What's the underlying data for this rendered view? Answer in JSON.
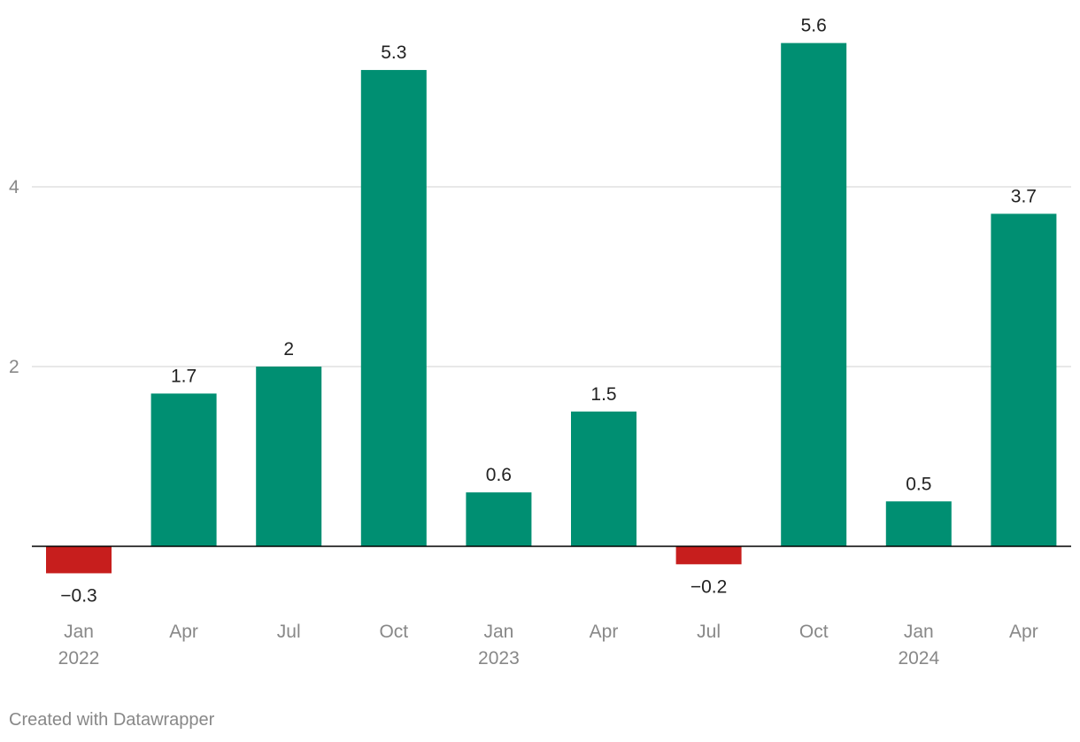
{
  "chart_data": {
    "type": "bar",
    "categories": [
      "Jan 2022",
      "Apr",
      "Jul",
      "Oct",
      "Jan 2023",
      "Apr",
      "Jul",
      "Oct",
      "Jan 2024",
      "Apr"
    ],
    "tick_labels": [
      [
        "Jan",
        "2022"
      ],
      [
        "Apr"
      ],
      [
        "Jul"
      ],
      [
        "Oct"
      ],
      [
        "Jan",
        "2023"
      ],
      [
        "Apr"
      ],
      [
        "Jul"
      ],
      [
        "Oct"
      ],
      [
        "Jan",
        "2024"
      ],
      [
        "Apr"
      ]
    ],
    "values": [
      -0.3,
      1.7,
      2,
      5.3,
      0.6,
      1.5,
      -0.2,
      5.6,
      0.5,
      3.7
    ],
    "value_labels": [
      "−0.3",
      "1.7",
      "2",
      "5.3",
      "0.6",
      "1.5",
      "−0.2",
      "5.6",
      "0.5",
      "3.7"
    ],
    "yticks": [
      2,
      4
    ],
    "ylim": [
      -0.6,
      5.85
    ],
    "grid": true,
    "colors": {
      "positive": "#008f72",
      "negative": "#c71e1d",
      "grid": "#e0e0e0",
      "axis": "#000000",
      "tick_text": "#888888",
      "label_text": "#222222"
    }
  },
  "footer": {
    "credit": "Created with Datawrapper"
  }
}
